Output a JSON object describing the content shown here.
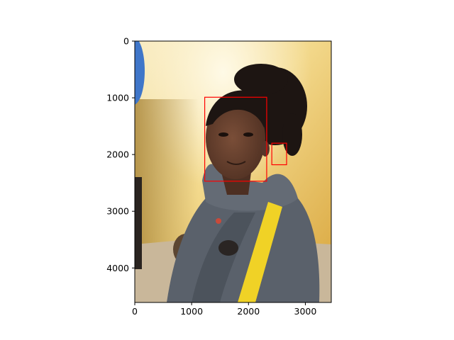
{
  "chart_data": {
    "type": "image",
    "description_kind": "image shown on matplotlib axes with bounding-box overlays",
    "title": "",
    "xlabel": "",
    "ylabel": "",
    "xlim": [
      0,
      3456
    ],
    "ylim": [
      4608,
      0
    ],
    "y_axis_inverted": true,
    "grid": false,
    "xticks": [
      {
        "value": 0,
        "label": "0"
      },
      {
        "value": 1000,
        "label": "1000"
      },
      {
        "value": 2000,
        "label": "2000"
      },
      {
        "value": 3000,
        "label": "3000"
      }
    ],
    "yticks": [
      {
        "value": 0,
        "label": "0"
      },
      {
        "value": 1000,
        "label": "1000"
      },
      {
        "value": 2000,
        "label": "2000"
      },
      {
        "value": 3000,
        "label": "3000"
      },
      {
        "value": 4000,
        "label": "4000"
      }
    ],
    "boxes": [
      {
        "label": "face",
        "x0": 1230,
        "y0": 990,
        "x1": 2320,
        "y1": 2470,
        "color": "#ff0000"
      },
      {
        "label": "ear",
        "x0": 2410,
        "y0": 1800,
        "x1": 2670,
        "y1": 2180,
        "color": "#ff0000"
      }
    ],
    "colors": {
      "wall": "#e3b54a",
      "wall_light": "#fbf1cf",
      "hoodie": "#5a616b",
      "skin": "#6b4431",
      "hair": "#1d1512",
      "stripe": "#f0d226"
    }
  }
}
